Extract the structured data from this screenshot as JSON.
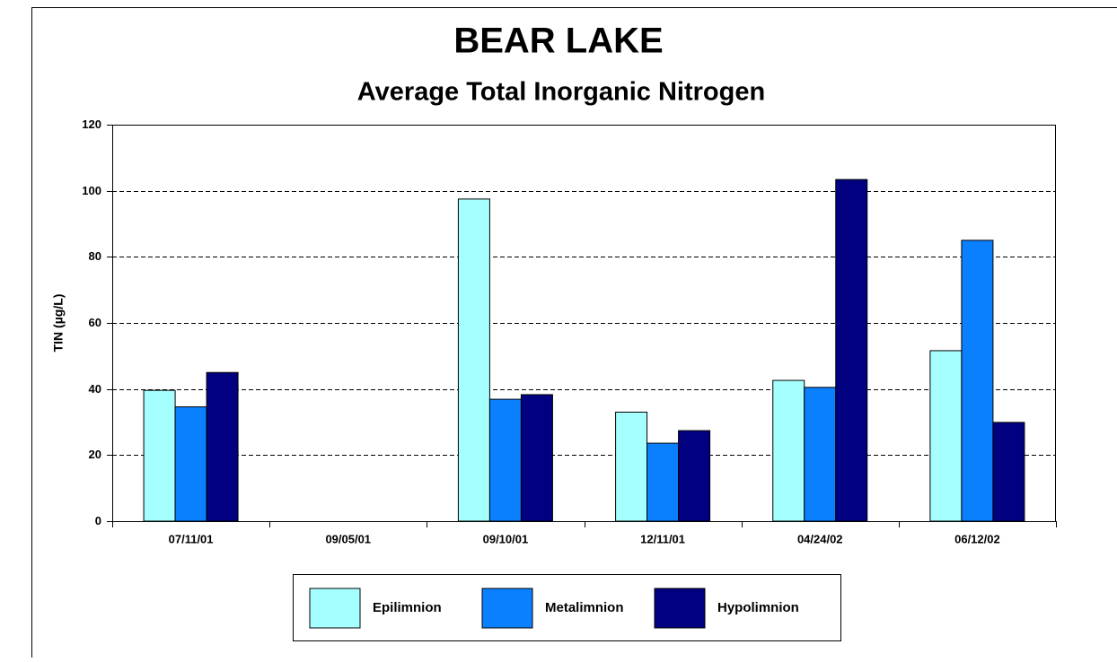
{
  "chart_data": {
    "type": "bar",
    "title": "BEAR LAKE",
    "subtitle": "Average Total Inorganic Nitrogen",
    "y_label": "TIN (µg/L)",
    "categories": [
      "07/11/01",
      "09/05/01",
      "09/10/01",
      "12/11/01",
      "04/24/02",
      "06/12/02"
    ],
    "series": [
      {
        "name": "Epilimnion",
        "color": "#a6ffff",
        "values": [
          39.6,
          null,
          97.5,
          33,
          42.6,
          51.6
        ]
      },
      {
        "name": "Metalimnion",
        "color": "#0a80ff",
        "values": [
          34.6,
          null,
          36.9,
          23.6,
          40.5,
          85
        ]
      },
      {
        "name": "Hypolimnion",
        "color": "#000080",
        "values": [
          45,
          null,
          38.3,
          27.4,
          103.4,
          29.9
        ]
      }
    ],
    "ylim": [
      0,
      120
    ],
    "yticks": [
      0,
      20,
      40,
      60,
      80,
      100,
      120
    ],
    "grid": true
  }
}
